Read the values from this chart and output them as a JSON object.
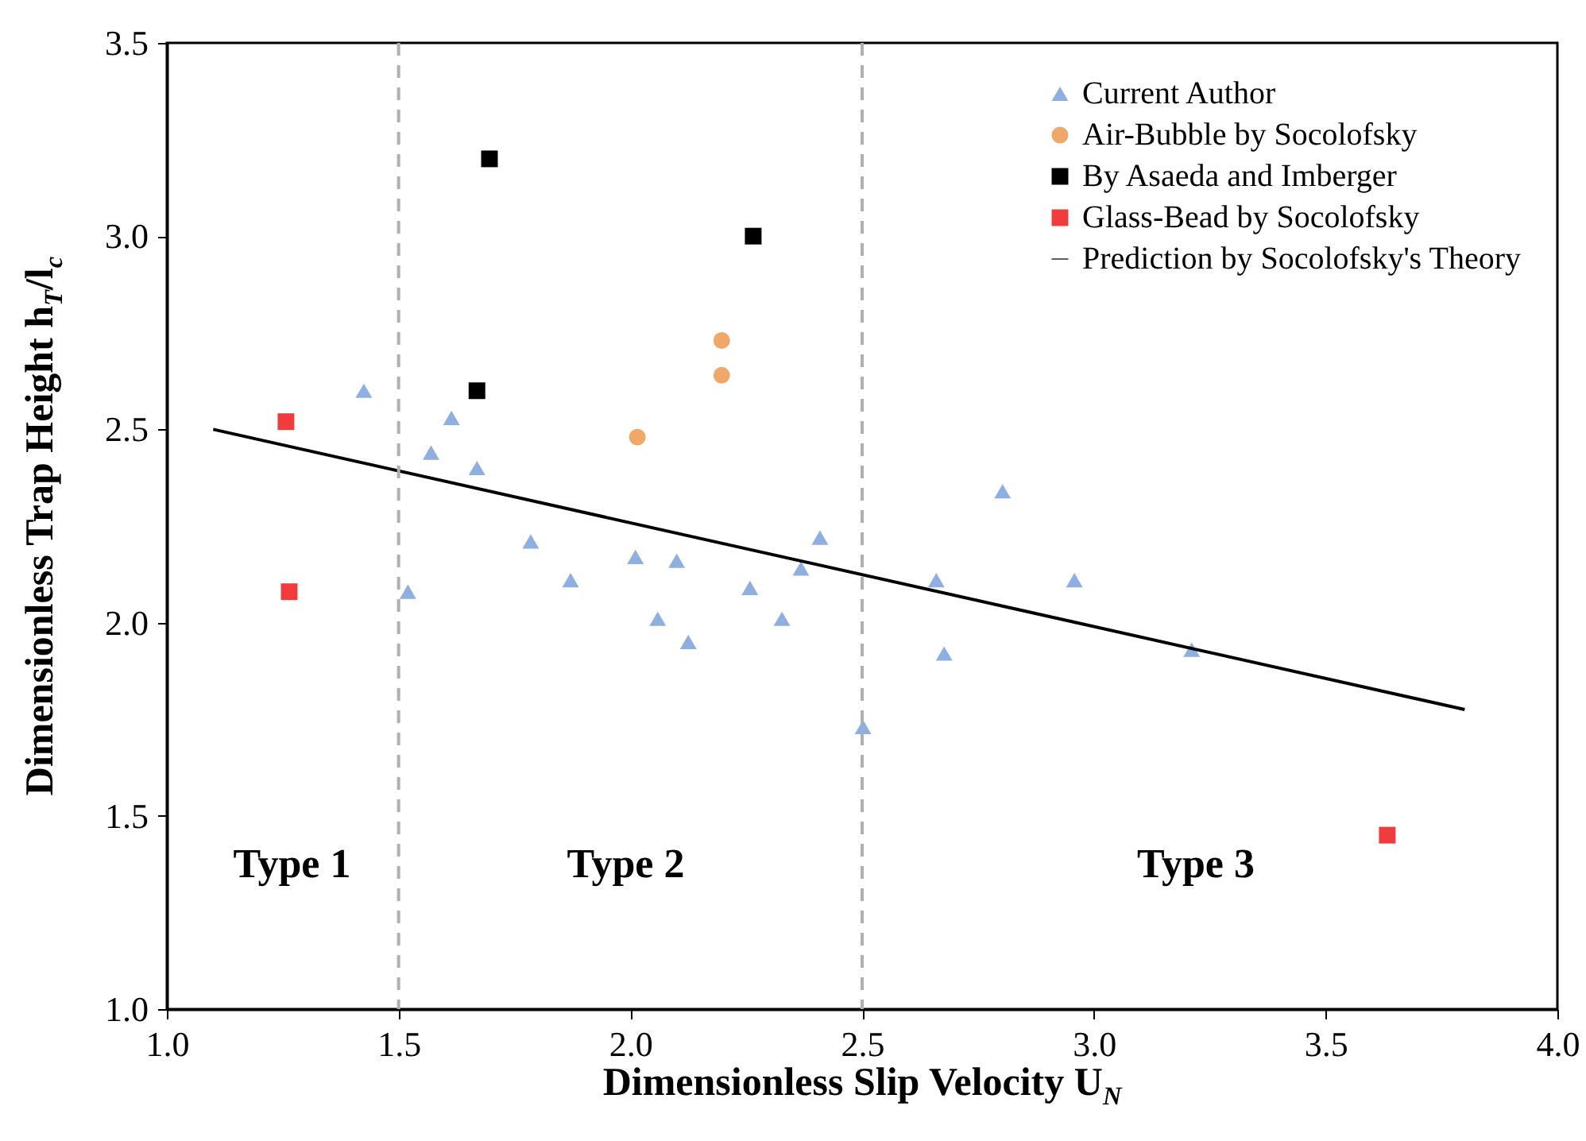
{
  "chart_data": {
    "type": "scatter",
    "xlabel": "Dimensionless Slip Velocity U$_{N}$",
    "ylabel": "Dimensionless Trap Height h$_{T}$/l$_{c}$",
    "xlim": [
      1,
      4
    ],
    "xticks": [
      {
        "value": 1,
        "label": "1.0"
      },
      1.5,
      {
        "value": 2,
        "label": "2.0"
      },
      2.5,
      {
        "value": 3,
        "label": "3.0"
      },
      3.5,
      {
        "value": 4,
        "label": "4.0"
      }
    ],
    "ylim": [
      1,
      3.5
    ],
    "yticks": [
      {
        "value": 1,
        "label": "1.0"
      },
      1.5,
      {
        "value": 2,
        "label": "2.0"
      },
      2.5,
      {
        "value": 3,
        "label": "3.0"
      },
      3.5
    ],
    "grid": false,
    "legend": "top right",
    "series": [
      {
        "name": "Current Author",
        "marker": "triangle",
        "color": "#8fafe0",
        "x": [
          1.425,
          1.52,
          1.57,
          1.614,
          1.669,
          1.785,
          1.871,
          2.011,
          2.059,
          2.1,
          2.125,
          2.258,
          2.327,
          2.368,
          2.409,
          2.502,
          2.66,
          2.677,
          2.803,
          2.958,
          3.211
        ],
        "values": [
          2.6,
          2.08,
          2.44,
          2.53,
          2.4,
          2.21,
          2.11,
          2.17,
          2.01,
          2.16,
          1.95,
          2.09,
          2.01,
          2.14,
          2.22,
          1.73,
          2.11,
          1.92,
          2.34,
          2.11,
          1.93
        ]
      },
      {
        "name": "Air-Bubble by Socolofsky",
        "marker": "circle",
        "color": "#f0a868",
        "x": [
          2.015,
          2.197,
          2.197
        ],
        "values": [
          2.48,
          2.73,
          2.64
        ]
      },
      {
        "name": "By Asaeda and Imberger",
        "marker": "square",
        "color": "#000000",
        "x": [
          1.696,
          1.669,
          2.265
        ],
        "values": [
          3.2,
          2.6,
          3.0
        ]
      },
      {
        "name": "Glass-Bead by Socolofsky",
        "marker": "square",
        "color": "#f03c3c",
        "x": [
          1.257,
          1.264,
          3.633
        ],
        "values": [
          2.52,
          2.08,
          1.45
        ]
      },
      {
        "name": "Prediction by Socolofsky's Theory",
        "type": "line",
        "line_style": "solid",
        "color": "#000000",
        "x": [
          1.1,
          3.8
        ],
        "values": [
          2.5,
          1.775
        ]
      }
    ],
    "ref_lines": [
      {
        "axis": "x",
        "value": 1.5,
        "color": "#b0b0b0",
        "line_style": "dashed"
      },
      {
        "axis": "x",
        "value": 2.5,
        "color": "#b0b0b0",
        "line_style": "dashed"
      }
    ],
    "annotations": [
      "Type 1",
      "Type 2",
      "Type 3"
    ]
  }
}
